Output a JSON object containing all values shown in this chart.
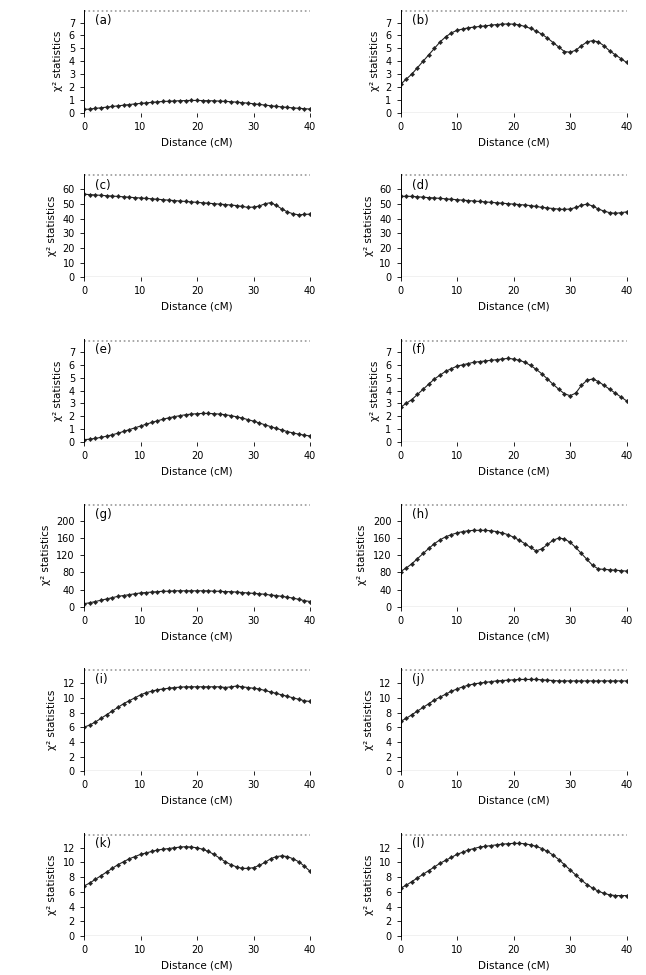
{
  "panels": [
    {
      "label": "(a)",
      "ylim": [
        0,
        8
      ],
      "yticks": [
        0,
        1,
        2,
        3,
        4,
        5,
        6,
        7
      ],
      "threshold": 7.88,
      "y_points": [
        0.25,
        0.28,
        0.33,
        0.38,
        0.43,
        0.48,
        0.53,
        0.58,
        0.63,
        0.68,
        0.72,
        0.76,
        0.8,
        0.84,
        0.87,
        0.89,
        0.91,
        0.93,
        0.94,
        0.95,
        0.95,
        0.94,
        0.93,
        0.92,
        0.9,
        0.88,
        0.85,
        0.82,
        0.78,
        0.74,
        0.69,
        0.64,
        0.59,
        0.54,
        0.49,
        0.45,
        0.41,
        0.37,
        0.34,
        0.31,
        0.28
      ]
    },
    {
      "label": "(b)",
      "ylim": [
        0,
        8
      ],
      "yticks": [
        0,
        1,
        2,
        3,
        4,
        5,
        6,
        7
      ],
      "threshold": 7.88,
      "y_points": [
        2.2,
        2.6,
        3.0,
        3.5,
        4.0,
        4.5,
        5.0,
        5.5,
        5.9,
        6.2,
        6.4,
        6.5,
        6.6,
        6.65,
        6.7,
        6.75,
        6.8,
        6.85,
        6.88,
        6.9,
        6.88,
        6.82,
        6.7,
        6.55,
        6.35,
        6.1,
        5.8,
        5.45,
        5.1,
        4.75,
        4.7,
        4.85,
        5.2,
        5.5,
        5.6,
        5.5,
        5.2,
        4.8,
        4.5,
        4.2,
        3.9
      ]
    },
    {
      "label": "(c)",
      "ylim": [
        0,
        70
      ],
      "yticks": [
        0,
        10,
        20,
        30,
        40,
        50,
        60
      ],
      "threshold": 69.5,
      "y_points": [
        56.5,
        56.3,
        56.0,
        55.8,
        55.5,
        55.3,
        55.0,
        54.8,
        54.5,
        54.2,
        54.0,
        53.7,
        53.4,
        53.1,
        52.8,
        52.5,
        52.2,
        51.9,
        51.6,
        51.3,
        51.0,
        50.7,
        50.4,
        50.1,
        49.8,
        49.5,
        49.2,
        48.8,
        48.2,
        47.6,
        47.8,
        48.5,
        50.0,
        50.8,
        49.0,
        46.5,
        44.5,
        43.2,
        42.5,
        42.8,
        43.0
      ]
    },
    {
      "label": "(d)",
      "ylim": [
        0,
        70
      ],
      "yticks": [
        0,
        10,
        20,
        30,
        40,
        50,
        60
      ],
      "threshold": 69.5,
      "y_points": [
        55.0,
        55.2,
        55.0,
        54.8,
        54.5,
        54.2,
        54.0,
        53.7,
        53.4,
        53.1,
        52.8,
        52.5,
        52.2,
        51.9,
        51.6,
        51.3,
        51.0,
        50.7,
        50.4,
        50.1,
        49.8,
        49.5,
        49.2,
        48.8,
        48.2,
        47.6,
        47.2,
        46.8,
        46.4,
        46.2,
        46.5,
        47.5,
        49.0,
        49.8,
        48.5,
        46.5,
        45.0,
        44.0,
        43.5,
        44.0,
        44.5
      ]
    },
    {
      "label": "(e)",
      "ylim": [
        0,
        8
      ],
      "yticks": [
        0,
        1,
        2,
        3,
        4,
        5,
        6,
        7
      ],
      "threshold": 7.88,
      "y_points": [
        0.18,
        0.22,
        0.28,
        0.36,
        0.45,
        0.56,
        0.68,
        0.82,
        0.96,
        1.1,
        1.24,
        1.38,
        1.52,
        1.65,
        1.77,
        1.88,
        1.97,
        2.05,
        2.12,
        2.17,
        2.2,
        2.22,
        2.22,
        2.2,
        2.17,
        2.12,
        2.05,
        1.96,
        1.86,
        1.74,
        1.62,
        1.48,
        1.34,
        1.2,
        1.06,
        0.93,
        0.81,
        0.7,
        0.61,
        0.53,
        0.47
      ]
    },
    {
      "label": "(f)",
      "ylim": [
        0,
        8
      ],
      "yticks": [
        0,
        1,
        2,
        3,
        4,
        5,
        6,
        7
      ],
      "threshold": 7.88,
      "y_points": [
        2.7,
        3.0,
        3.3,
        3.7,
        4.1,
        4.5,
        4.9,
        5.2,
        5.5,
        5.7,
        5.9,
        6.0,
        6.1,
        6.2,
        6.25,
        6.3,
        6.35,
        6.4,
        6.45,
        6.5,
        6.45,
        6.35,
        6.2,
        5.95,
        5.65,
        5.3,
        4.9,
        4.48,
        4.1,
        3.75,
        3.6,
        3.8,
        4.4,
        4.8,
        4.9,
        4.7,
        4.4,
        4.1,
        3.8,
        3.5,
        3.2
      ]
    },
    {
      "label": "(g)",
      "ylim": [
        0,
        240
      ],
      "yticks": [
        0,
        40,
        80,
        120,
        160,
        200
      ],
      "threshold": 236,
      "y_points": [
        7,
        9,
        12,
        15,
        18,
        21,
        24,
        26,
        28,
        30,
        32,
        33,
        34,
        35,
        36,
        36,
        37,
        37,
        37,
        37,
        37,
        37,
        37,
        36,
        36,
        35,
        35,
        34,
        33,
        32,
        31,
        30,
        29,
        27,
        26,
        24,
        22,
        20,
        17,
        14,
        12
      ]
    },
    {
      "label": "(h)",
      "ylim": [
        0,
        240
      ],
      "yticks": [
        0,
        40,
        80,
        120,
        160,
        200
      ],
      "threshold": 236,
      "y_points": [
        82,
        90,
        100,
        112,
        124,
        136,
        147,
        156,
        163,
        168,
        172,
        175,
        177,
        178,
        178,
        178,
        177,
        175,
        172,
        168,
        162,
        155,
        147,
        138,
        130,
        135,
        145,
        155,
        160,
        158,
        150,
        138,
        124,
        110,
        96,
        88,
        87,
        86,
        85,
        84,
        83
      ]
    },
    {
      "label": "(i)",
      "ylim": [
        0,
        14
      ],
      "yticks": [
        0,
        2,
        4,
        6,
        8,
        10,
        12
      ],
      "threshold": 13.8,
      "y_points": [
        6.0,
        6.3,
        6.7,
        7.2,
        7.7,
        8.2,
        8.7,
        9.2,
        9.6,
        10.0,
        10.4,
        10.7,
        10.9,
        11.1,
        11.2,
        11.3,
        11.4,
        11.45,
        11.5,
        11.5,
        11.5,
        11.5,
        11.5,
        11.5,
        11.5,
        11.4,
        11.5,
        11.6,
        11.5,
        11.4,
        11.3,
        11.2,
        11.0,
        10.8,
        10.6,
        10.4,
        10.2,
        10.0,
        9.8,
        9.6,
        9.5
      ]
    },
    {
      "label": "(j)",
      "ylim": [
        0,
        14
      ],
      "yticks": [
        0,
        2,
        4,
        6,
        8,
        10,
        12
      ],
      "threshold": 13.8,
      "y_points": [
        6.8,
        7.2,
        7.7,
        8.2,
        8.7,
        9.2,
        9.7,
        10.1,
        10.5,
        10.9,
        11.2,
        11.5,
        11.7,
        11.9,
        12.0,
        12.1,
        12.2,
        12.3,
        12.35,
        12.4,
        12.45,
        12.5,
        12.5,
        12.5,
        12.5,
        12.45,
        12.4,
        12.35,
        12.3,
        12.3,
        12.3,
        12.3,
        12.3,
        12.3,
        12.3,
        12.3,
        12.3,
        12.3,
        12.3,
        12.3,
        12.3
      ]
    },
    {
      "label": "(k)",
      "ylim": [
        0,
        14
      ],
      "yticks": [
        0,
        2,
        4,
        6,
        8,
        10,
        12
      ],
      "threshold": 13.8,
      "y_points": [
        6.8,
        7.2,
        7.7,
        8.2,
        8.7,
        9.2,
        9.7,
        10.1,
        10.5,
        10.8,
        11.1,
        11.3,
        11.5,
        11.7,
        11.8,
        11.9,
        12.0,
        12.1,
        12.15,
        12.1,
        12.0,
        11.8,
        11.5,
        11.1,
        10.6,
        10.1,
        9.7,
        9.4,
        9.2,
        9.2,
        9.3,
        9.6,
        10.0,
        10.5,
        10.8,
        10.9,
        10.8,
        10.5,
        10.1,
        9.5,
        8.8
      ]
    },
    {
      "label": "(l)",
      "ylim": [
        0,
        14
      ],
      "yticks": [
        0,
        2,
        4,
        6,
        8,
        10,
        12
      ],
      "threshold": 13.8,
      "y_points": [
        6.5,
        6.9,
        7.4,
        7.9,
        8.4,
        8.9,
        9.4,
        9.9,
        10.3,
        10.7,
        11.1,
        11.4,
        11.7,
        11.9,
        12.1,
        12.2,
        12.3,
        12.4,
        12.5,
        12.55,
        12.6,
        12.6,
        12.55,
        12.4,
        12.2,
        11.9,
        11.5,
        11.0,
        10.4,
        9.7,
        9.0,
        8.3,
        7.6,
        7.0,
        6.5,
        6.1,
        5.8,
        5.6,
        5.5,
        5.5,
        5.5
      ]
    }
  ],
  "xlim": [
    0,
    40
  ],
  "xticks": [
    0,
    10,
    20,
    30,
    40
  ],
  "xlabel": "Distance (cM)",
  "ylabel": "χ² statistics",
  "marker": "D",
  "markersize": 2.2,
  "linewidth": 0.8,
  "color": "#222222",
  "threshold_color": "#999999",
  "threshold_linestyle": ":",
  "threshold_linewidth": 1.2,
  "baseline_color": "#000000",
  "baseline_linewidth": 0.8
}
